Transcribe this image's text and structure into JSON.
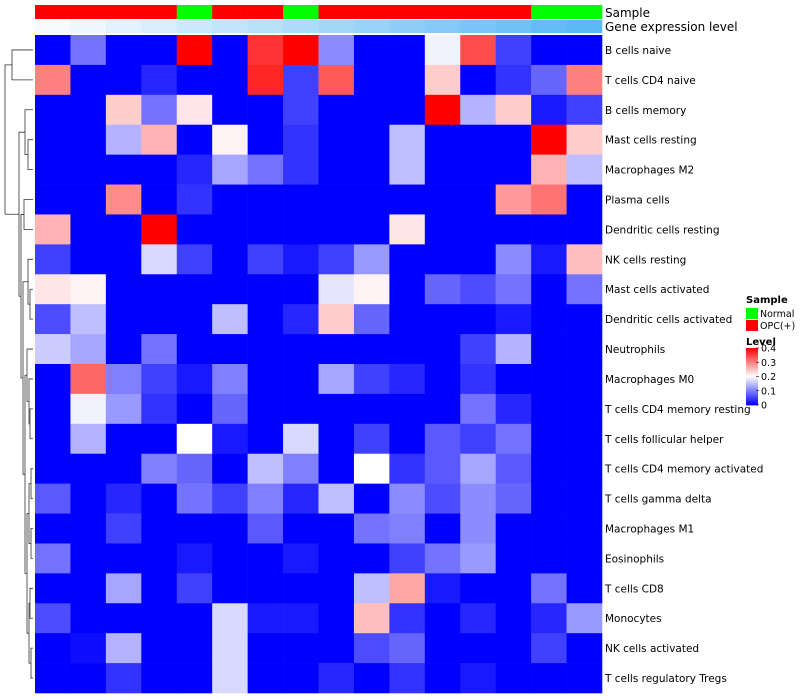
{
  "chart_data": {
    "type": "heatmap",
    "title": "",
    "annotation_tracks": [
      {
        "label": "Sample",
        "type": "categorical"
      },
      {
        "label": "Gene expression level",
        "type": "continuous"
      }
    ],
    "samples": [
      {
        "group": "OPC(+)",
        "expr_rank": 1
      },
      {
        "group": "OPC(+)",
        "expr_rank": 2
      },
      {
        "group": "OPC(+)",
        "expr_rank": 3
      },
      {
        "group": "OPC(+)",
        "expr_rank": 4
      },
      {
        "group": "Normal",
        "expr_rank": 5
      },
      {
        "group": "OPC(+)",
        "expr_rank": 6
      },
      {
        "group": "OPC(+)",
        "expr_rank": 7
      },
      {
        "group": "Normal",
        "expr_rank": 8
      },
      {
        "group": "OPC(+)",
        "expr_rank": 9
      },
      {
        "group": "OPC(+)",
        "expr_rank": 10
      },
      {
        "group": "OPC(+)",
        "expr_rank": 11
      },
      {
        "group": "OPC(+)",
        "expr_rank": 12
      },
      {
        "group": "OPC(+)",
        "expr_rank": 13
      },
      {
        "group": "OPC(+)",
        "expr_rank": 14
      },
      {
        "group": "Normal",
        "expr_rank": 15
      },
      {
        "group": "Normal",
        "expr_rank": 16
      }
    ],
    "rows": [
      "B cells naive",
      "T cells CD4 naive",
      "B cells memory",
      "Mast cells resting",
      "Macrophages M2",
      "Plasma cells",
      "Dendritic cells resting",
      "NK cells resting",
      "Mast cells activated",
      "Dendritic cells activated",
      "Neutrophils",
      "Macrophages M0",
      "T cells CD4 memory resting",
      "T cells follicular helper",
      "T cells CD4 memory activated",
      "T cells gamma delta",
      "Macrophages M1",
      "Eosinophils",
      "T cells CD8",
      "Monocytes",
      "NK cells activated",
      "T cells regulatory  Tregs"
    ],
    "values": [
      [
        0,
        0.09,
        0,
        0,
        0.4,
        0,
        0.36,
        0.4,
        0.11,
        0,
        0,
        0.19,
        0.34,
        0.05,
        0,
        0
      ],
      [
        0.3,
        0,
        0,
        0.03,
        0,
        0,
        0.37,
        0.05,
        0.33,
        0,
        0,
        0.24,
        0,
        0.04,
        0.08,
        0.3
      ],
      [
        0,
        0,
        0.24,
        0.09,
        0.22,
        0,
        0,
        0.05,
        0,
        0,
        0,
        0.4,
        0.14,
        0.24,
        0.02,
        0.05
      ],
      [
        0,
        0,
        0.14,
        0.26,
        0,
        0.21,
        0,
        0.04,
        0,
        0,
        0.15,
        0,
        0,
        0,
        0.4,
        0.24
      ],
      [
        0,
        0,
        0,
        0,
        0.03,
        0.13,
        0.09,
        0.04,
        0,
        0,
        0.15,
        0,
        0,
        0,
        0.26,
        0.15
      ],
      [
        0,
        0,
        0.29,
        0,
        0.04,
        0,
        0,
        0,
        0,
        0,
        0,
        0,
        0,
        0.28,
        0.31,
        0
      ],
      [
        0.26,
        0,
        0,
        0.4,
        0,
        0,
        0,
        0,
        0,
        0,
        0.22,
        0,
        0,
        0,
        0,
        0
      ],
      [
        0.05,
        0,
        0,
        0.17,
        0.05,
        0,
        0.05,
        0.02,
        0.05,
        0.12,
        0,
        0,
        0,
        0.11,
        0.02,
        0.25
      ],
      [
        0.22,
        0.21,
        0,
        0,
        0,
        0,
        0,
        0,
        0.18,
        0.21,
        0,
        0.08,
        0.06,
        0.09,
        0,
        0.09
      ],
      [
        0.06,
        0.15,
        0,
        0,
        0,
        0.15,
        0,
        0.03,
        0.24,
        0.08,
        0,
        0,
        0,
        0.02,
        0,
        0
      ],
      [
        0.16,
        0.13,
        0,
        0.09,
        0,
        0,
        0,
        0,
        0,
        0,
        0,
        0,
        0.05,
        0.14,
        0,
        0
      ],
      [
        0,
        0.32,
        0.1,
        0.05,
        0.02,
        0.1,
        0,
        0,
        0.13,
        0.05,
        0.03,
        0,
        0.04,
        0,
        0,
        0
      ],
      [
        0,
        0.19,
        0.12,
        0.04,
        0,
        0.08,
        0,
        0,
        0,
        0,
        0,
        0,
        0.09,
        0.03,
        0,
        0
      ],
      [
        0,
        0.14,
        0,
        0,
        0.2,
        0.02,
        0,
        0.17,
        0,
        0.05,
        0,
        0.07,
        0.05,
        0.09,
        0,
        0
      ],
      [
        0,
        0,
        0,
        0.1,
        0.08,
        0,
        0.15,
        0.1,
        0,
        0.2,
        0.04,
        0.07,
        0.13,
        0.07,
        0,
        0
      ],
      [
        0.07,
        0,
        0.03,
        0,
        0.09,
        0.05,
        0.1,
        0.03,
        0.15,
        0,
        0.11,
        0.06,
        0.11,
        0.08,
        0,
        0
      ],
      [
        0,
        0,
        0.05,
        0,
        0,
        0,
        0.07,
        0,
        0,
        0.09,
        0.1,
        0,
        0.11,
        0,
        0,
        0
      ],
      [
        0.09,
        0,
        0,
        0,
        0.02,
        0,
        0,
        0.02,
        0,
        0,
        0.05,
        0.09,
        0.12,
        0,
        0,
        0
      ],
      [
        0,
        0,
        0.13,
        0,
        0.05,
        0,
        0,
        0,
        0,
        0.15,
        0.27,
        0.02,
        0,
        0,
        0.09,
        0
      ],
      [
        0.06,
        0,
        0,
        0,
        0,
        0.17,
        0.02,
        0.02,
        0,
        0.25,
        0.04,
        0,
        0.03,
        0,
        0.03,
        0.12
      ],
      [
        0,
        0.01,
        0.14,
        0,
        0,
        0.17,
        0,
        0,
        0,
        0.06,
        0.08,
        0,
        0,
        0,
        0.05,
        0
      ],
      [
        0,
        0,
        0.04,
        0,
        0,
        0.17,
        0,
        0,
        0.03,
        0,
        0.04,
        0,
        0.02,
        0,
        0,
        0
      ]
    ],
    "color_scale": {
      "min": 0,
      "mid": 0.2,
      "max": 0.4,
      "low_color": "#0000ff",
      "mid_color": "#ffffff",
      "high_color": "#ff0000"
    },
    "group_colors": {
      "Normal": "#00ff00",
      "OPC(+)": "#ff0000"
    },
    "expr_colors": {
      "low": "#f6fbff",
      "high": "#5ab8f5"
    },
    "legend": {
      "position": "right",
      "sample_title": "Sample",
      "groups": [
        "Normal",
        "OPC(+)"
      ],
      "level_title": "Level",
      "level_ticks": [
        "0.4",
        "0.3",
        "0.2",
        "0.1",
        "0"
      ],
      "level_tick_values": [
        0.4,
        0.3,
        0.2,
        0.1,
        0
      ]
    },
    "dendrogram": "row-clustering tree drawn on left"
  }
}
